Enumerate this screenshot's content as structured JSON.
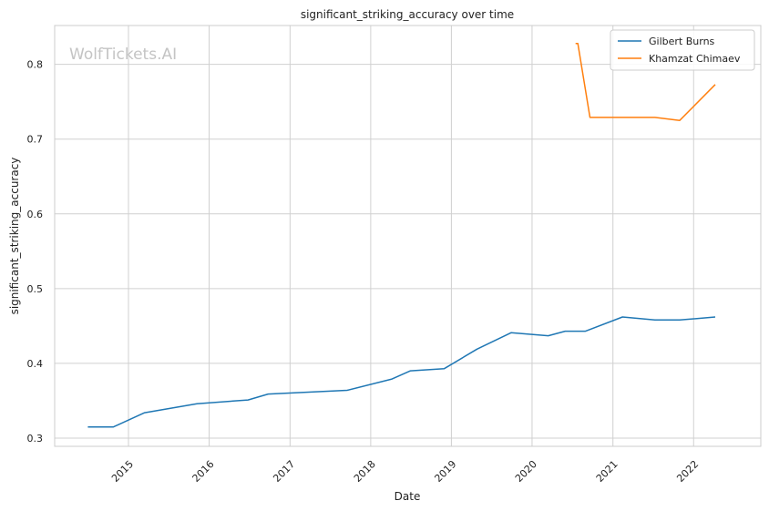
{
  "watermark": "WolfTickets.AI",
  "colors": {
    "grid": "#d0d0d0",
    "frame": "#cccccc",
    "series": [
      "#1f77b4",
      "#ff7f0e"
    ]
  },
  "chart_data": {
    "type": "line",
    "title": "significant_striking_accuracy over time",
    "xlabel": "Date",
    "ylabel": "significant_striking_accuracy",
    "x_axis": "date",
    "xlim": [
      "2014-02-01",
      "2022-11-01"
    ],
    "ylim": [
      0.289,
      0.852
    ],
    "x_ticks": [
      "2015-01-01",
      "2016-01-01",
      "2017-01-01",
      "2018-01-01",
      "2019-01-01",
      "2020-01-01",
      "2021-01-01",
      "2022-01-01"
    ],
    "x_tick_labels": [
      "2015",
      "2016",
      "2017",
      "2018",
      "2019",
      "2020",
      "2021",
      "2022"
    ],
    "y_ticks": [
      0.3,
      0.4,
      0.5,
      0.6,
      0.7,
      0.8
    ],
    "y_tick_labels": [
      "0.3",
      "0.4",
      "0.5",
      "0.6",
      "0.7",
      "0.8"
    ],
    "grid": true,
    "legend_position": "top-right",
    "series": [
      {
        "name": "Gilbert Burns",
        "color": "#1f77b4",
        "points": [
          [
            "2014-07-01",
            0.315
          ],
          [
            "2014-10-25",
            0.315
          ],
          [
            "2015-03-15",
            0.334
          ],
          [
            "2015-11-07",
            0.346
          ],
          [
            "2016-06-25",
            0.351
          ],
          [
            "2016-09-24",
            0.359
          ],
          [
            "2017-09-16",
            0.364
          ],
          [
            "2018-04-07",
            0.379
          ],
          [
            "2018-06-30",
            0.39
          ],
          [
            "2018-11-30",
            0.393
          ],
          [
            "2019-04-27",
            0.419
          ],
          [
            "2019-09-28",
            0.441
          ],
          [
            "2020-03-14",
            0.437
          ],
          [
            "2020-05-30",
            0.443
          ],
          [
            "2020-08-30",
            0.443
          ],
          [
            "2021-02-13",
            0.462
          ],
          [
            "2021-07-10",
            0.458
          ],
          [
            "2021-10-30",
            0.458
          ],
          [
            "2022-04-09",
            0.462
          ]
        ]
      },
      {
        "name": "Khamzat Chimaev",
        "color": "#ff7f0e",
        "points": [
          [
            "2020-07-16",
            0.828
          ],
          [
            "2020-07-26",
            0.828
          ],
          [
            "2020-09-19",
            0.729
          ],
          [
            "2021-07-10",
            0.729
          ],
          [
            "2021-10-30",
            0.725
          ],
          [
            "2022-04-09",
            0.773
          ]
        ]
      }
    ]
  }
}
